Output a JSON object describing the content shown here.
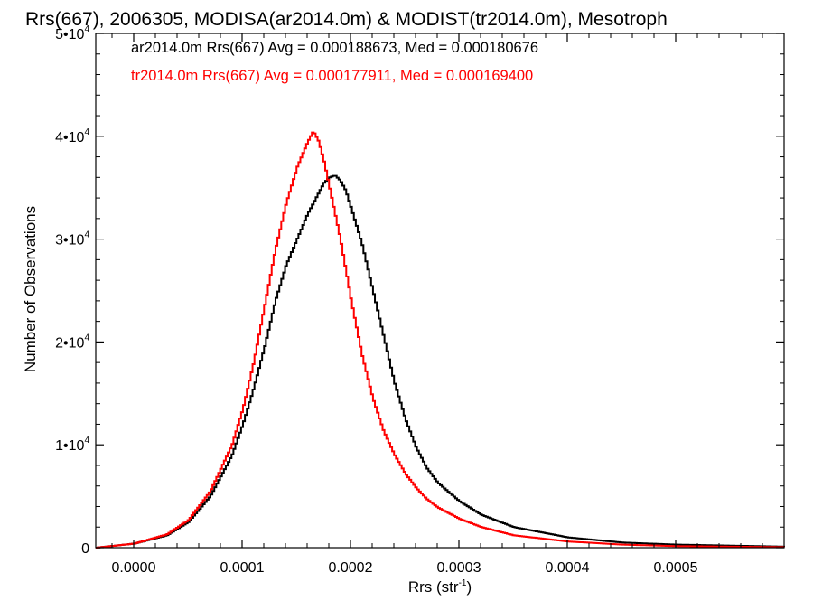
{
  "chart_data": {
    "type": "line",
    "title": "Rrs(667), 2006305, MODISA(ar2014.0m) & MODIST(tr2014.0m), Mesotroph",
    "xlabel": "Rrs (str",
    "xlabel_sup": "-1",
    "xlabel_end": ")",
    "ylabel": "Number of Observations",
    "xlim": [
      -3.5e-05,
      0.0006
    ],
    "ylim": [
      0,
      50000
    ],
    "x_ticks": [
      0.0,
      0.0001,
      0.0002,
      0.0003,
      0.0004,
      0.0005
    ],
    "x_tick_labels": [
      "0.0000",
      "0.0001",
      "0.0002",
      "0.0003",
      "0.0004",
      "0.0005"
    ],
    "y_ticks": [
      0,
      10000,
      20000,
      30000,
      40000,
      50000
    ],
    "y_tick_labels": [
      {
        "base": "0",
        "sup": ""
      },
      {
        "base": "1•10",
        "sup": "4"
      },
      {
        "base": "2•10",
        "sup": "4"
      },
      {
        "base": "3•10",
        "sup": "4"
      },
      {
        "base": "4•10",
        "sup": "4"
      },
      {
        "base": "5•10",
        "sup": "4"
      }
    ],
    "grid": false,
    "legend_position": "top-left",
    "series": [
      {
        "name": "ar2014.0m",
        "color": "#000000",
        "stat_text": "ar2014.0m Rrs(667) Avg = 0.000188673, Med = 0.000180676",
        "x": [
          -3.5e-05,
          0.0,
          3e-05,
          5e-05,
          7e-05,
          9e-05,
          0.0001,
          0.00011,
          0.00012,
          0.00013,
          0.00014,
          0.00015,
          0.00016,
          0.00017,
          0.000175,
          0.00018,
          0.000185,
          0.00019,
          0.000195,
          0.0002,
          0.00021,
          0.00022,
          0.00023,
          0.00024,
          0.00025,
          0.00026,
          0.00027,
          0.00028,
          0.0003,
          0.00032,
          0.00035,
          0.0004,
          0.00045,
          0.0005,
          0.0006
        ],
        "y": [
          0,
          400,
          1200,
          2500,
          5000,
          9000,
          12000,
          15500,
          19500,
          24000,
          27500,
          30000,
          32500,
          34500,
          35500,
          36000,
          36200,
          35700,
          34700,
          33000,
          29500,
          25000,
          20500,
          16000,
          12500,
          9700,
          7700,
          6300,
          4500,
          3200,
          2000,
          1000,
          500,
          300,
          100
        ]
      },
      {
        "name": "tr2014.0m",
        "color": "#ff0000",
        "stat_text": "tr2014.0m Rrs(667) Avg = 0.000177911, Med = 0.000169400",
        "x": [
          -3.5e-05,
          0.0,
          3e-05,
          5e-05,
          7e-05,
          9e-05,
          0.0001,
          0.00011,
          0.00012,
          0.00013,
          0.00014,
          0.00015,
          0.00016,
          0.000165,
          0.00017,
          0.000175,
          0.00018,
          0.00019,
          0.0002,
          0.00021,
          0.00022,
          0.00023,
          0.00024,
          0.00025,
          0.00026,
          0.00027,
          0.00028,
          0.0003,
          0.00032,
          0.00035,
          0.0004,
          0.00045,
          0.0005,
          0.0006
        ],
        "y": [
          0,
          400,
          1300,
          2700,
          5500,
          10000,
          13500,
          18000,
          23500,
          29000,
          33500,
          37000,
          39500,
          40500,
          39500,
          37500,
          35000,
          30000,
          24000,
          18700,
          14500,
          11300,
          9000,
          7200,
          5800,
          4700,
          3900,
          2800,
          2000,
          1200,
          600,
          300,
          150,
          50
        ]
      }
    ]
  }
}
